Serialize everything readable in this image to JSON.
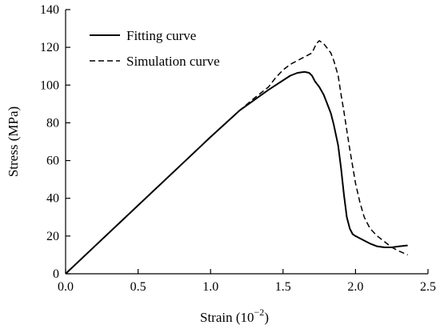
{
  "chart_data": {
    "type": "line",
    "title": "",
    "xlabel": "Strain (10",
    "xlabel_sup": "−2",
    "xlabel_close": ")",
    "ylabel": "Stress (MPa)",
    "xlim": [
      0,
      2.5
    ],
    "ylim": [
      0,
      140
    ],
    "xticks": [
      "0.0",
      "0.5",
      "1.0",
      "1.5",
      "2.0",
      "2.5"
    ],
    "yticks": [
      "0",
      "20",
      "40",
      "60",
      "80",
      "100",
      "120",
      "140"
    ],
    "xtick_values": [
      0,
      0.5,
      1.0,
      1.5,
      2.0,
      2.5
    ],
    "ytick_values": [
      0,
      20,
      40,
      60,
      80,
      100,
      120,
      140
    ],
    "grid": false,
    "legend_position": "top-left",
    "series": [
      {
        "name": "Fitting curve",
        "style": "solid",
        "color": "#000000",
        "x": [
          0,
          0.2,
          0.4,
          0.6,
          0.8,
          1.0,
          1.1,
          1.2,
          1.3,
          1.4,
          1.5,
          1.55,
          1.6,
          1.65,
          1.68,
          1.7,
          1.72,
          1.75,
          1.78,
          1.8,
          1.83,
          1.85,
          1.88,
          1.9,
          1.92,
          1.94,
          1.96,
          1.98,
          2.0,
          2.05,
          2.1,
          2.15,
          2.2,
          2.25,
          2.3,
          2.36
        ],
        "y": [
          0,
          14.5,
          29,
          43.5,
          58,
          72.5,
          79.5,
          86.5,
          92,
          97.5,
          102.5,
          105,
          106.5,
          107,
          106.5,
          105,
          102,
          99,
          95,
          91,
          85,
          79,
          68,
          56,
          42,
          30,
          24,
          21,
          20,
          18,
          16,
          14.5,
          14,
          14,
          14.5,
          15
        ]
      },
      {
        "name": "Simulation curve",
        "style": "dashed",
        "color": "#000000",
        "x": [
          0,
          0.2,
          0.4,
          0.6,
          0.8,
          1.0,
          1.1,
          1.2,
          1.3,
          1.4,
          1.45,
          1.5,
          1.55,
          1.6,
          1.65,
          1.7,
          1.73,
          1.75,
          1.78,
          1.8,
          1.83,
          1.85,
          1.88,
          1.9,
          1.92,
          1.94,
          1.96,
          1.98,
          2.0,
          2.03,
          2.06,
          2.1,
          2.15,
          2.2,
          2.25,
          2.3,
          2.36
        ],
        "y": [
          0,
          14.5,
          29,
          43.5,
          58,
          72.5,
          79.5,
          86.5,
          93,
          99,
          104,
          108,
          111,
          113,
          115,
          117,
          122,
          123.5,
          122,
          120,
          117,
          113,
          105,
          95,
          86,
          76,
          66,
          57,
          48,
          38,
          30,
          24,
          20,
          17,
          14,
          12,
          10
        ]
      }
    ]
  }
}
